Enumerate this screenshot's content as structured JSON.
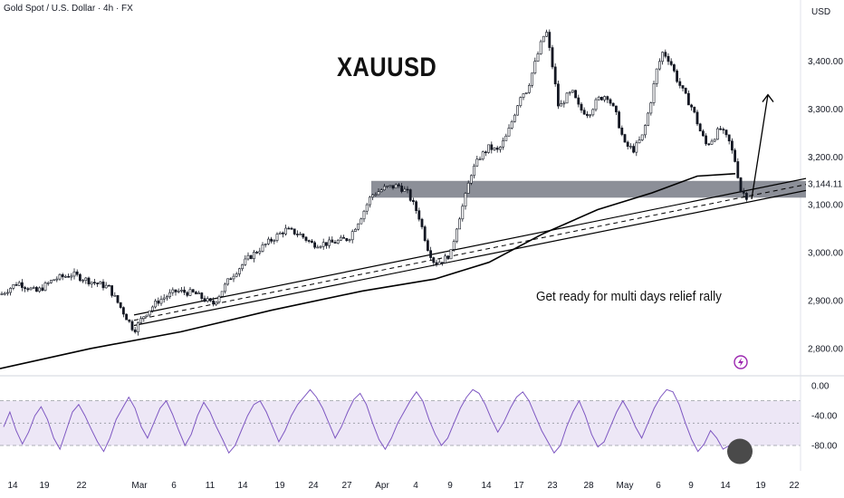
{
  "header": {
    "symbol_label": "Gold Spot / U.S. Dollar · 4h · FX",
    "currency": "USD"
  },
  "annotations": {
    "title": "XAUUSD",
    "note": "Get ready for multi days relief rally",
    "price_label": "3,144.11"
  },
  "colors": {
    "candle": "#131722",
    "zone": "#787b86",
    "rsi_line": "#7e57c2",
    "rsi_band": "#ede7f6",
    "rsi_marker": "#4a4a4a",
    "bolt": "#9c27b0"
  },
  "chart_data": [
    {
      "type": "candlestick",
      "title": "Gold Spot / U.S. Dollar · 4h · FX",
      "y_axis": {
        "ticks": [
          2800,
          2900,
          3000,
          3100,
          3200,
          3300,
          3400
        ],
        "tick_labels": [
          "2,800.00",
          "2,900.00",
          "3,000.00",
          "3,100.00",
          "3,200.00",
          "3,300.00",
          "3,400.00"
        ],
        "ylim": [
          2745,
          3505
        ],
        "unit": "USD"
      },
      "x_axis": {
        "tick_labels": [
          "14",
          "19",
          "22",
          "Mar",
          "6",
          "11",
          "14",
          "19",
          "24",
          "27",
          "Apr",
          "4",
          "9",
          "14",
          "17",
          "23",
          "28",
          "May",
          "6",
          "9",
          "14",
          "19",
          "22"
        ]
      },
      "price_path": [
        [
          0,
          2912
        ],
        [
          20,
          2938
        ],
        [
          40,
          2918
        ],
        [
          60,
          2945
        ],
        [
          80,
          2955
        ],
        [
          100,
          2940
        ],
        [
          120,
          2928
        ],
        [
          135,
          2880
        ],
        [
          148,
          2838
        ],
        [
          160,
          2872
        ],
        [
          175,
          2900
        ],
        [
          195,
          2920
        ],
        [
          215,
          2915
        ],
        [
          235,
          2892
        ],
        [
          255,
          2950
        ],
        [
          275,
          2990
        ],
        [
          295,
          3020
        ],
        [
          315,
          3048
        ],
        [
          330,
          3040
        ],
        [
          345,
          3018
        ],
        [
          365,
          3020
        ],
        [
          385,
          3030
        ],
        [
          400,
          3080
        ],
        [
          410,
          3120
        ],
        [
          425,
          3135
        ],
        [
          440,
          3140
        ],
        [
          450,
          3125
        ],
        [
          462,
          3080
        ],
        [
          472,
          3012
        ],
        [
          480,
          2978
        ],
        [
          490,
          2985
        ],
        [
          498,
          3000
        ],
        [
          505,
          3060
        ],
        [
          513,
          3110
        ],
        [
          520,
          3165
        ],
        [
          530,
          3200
        ],
        [
          540,
          3220
        ],
        [
          550,
          3212
        ],
        [
          560,
          3245
        ],
        [
          568,
          3290
        ],
        [
          575,
          3330
        ],
        [
          582,
          3340
        ],
        [
          590,
          3390
        ],
        [
          598,
          3440
        ],
        [
          603,
          3465
        ],
        [
          610,
          3390
        ],
        [
          617,
          3300
        ],
        [
          625,
          3325
        ],
        [
          632,
          3335
        ],
        [
          640,
          3300
        ],
        [
          650,
          3290
        ],
        [
          660,
          3320
        ],
        [
          670,
          3330
        ],
        [
          680,
          3290
        ],
        [
          690,
          3225
        ],
        [
          700,
          3215
        ],
        [
          710,
          3245
        ],
        [
          718,
          3310
        ],
        [
          725,
          3380
        ],
        [
          732,
          3420
        ],
        [
          740,
          3400
        ],
        [
          748,
          3360
        ],
        [
          756,
          3330
        ],
        [
          765,
          3300
        ],
        [
          773,
          3255
        ],
        [
          780,
          3225
        ],
        [
          788,
          3240
        ],
        [
          795,
          3260
        ],
        [
          805,
          3232
        ],
        [
          812,
          3190
        ],
        [
          818,
          3130
        ],
        [
          826,
          3115
        ]
      ],
      "moving_average_curve": [
        [
          0,
          2758
        ],
        [
          100,
          2800
        ],
        [
          200,
          2835
        ],
        [
          300,
          2880
        ],
        [
          400,
          2920
        ],
        [
          480,
          2945
        ],
        [
          540,
          2980
        ],
        [
          600,
          3040
        ],
        [
          660,
          3090
        ],
        [
          720,
          3125
        ],
        [
          770,
          3160
        ],
        [
          812,
          3165
        ]
      ],
      "support_channel": {
        "lower_start": [
          148,
          2848
        ],
        "lower_end": [
          890,
          3130
        ],
        "upper_end": [
          890,
          3155
        ]
      },
      "resistance_zone": {
        "x_range": [
          410,
          890
        ],
        "price_range": [
          3115,
          3150
        ],
        "price_label": "3,144.11"
      },
      "projection": {
        "from": [
          830,
          3112
        ],
        "to": [
          848,
          3330
        ]
      }
    },
    {
      "type": "line",
      "name": "RSI",
      "y_axis": {
        "ticks": [
          0,
          -40,
          -80
        ],
        "tick_labels": [
          "0.00",
          "-40.00",
          "-80.00"
        ],
        "ylim": [
          -108,
          10
        ]
      },
      "levels": [
        -20,
        -50,
        -80
      ],
      "values": [
        -55,
        -35,
        -60,
        -78,
        -62,
        -40,
        -28,
        -45,
        -70,
        -85,
        -60,
        -35,
        -25,
        -40,
        -58,
        -75,
        -88,
        -70,
        -45,
        -30,
        -15,
        -30,
        -55,
        -70,
        -50,
        -30,
        -20,
        -38,
        -60,
        -80,
        -65,
        -40,
        -22,
        -35,
        -55,
        -72,
        -90,
        -80,
        -60,
        -40,
        -25,
        -20,
        -35,
        -55,
        -75,
        -60,
        -40,
        -25,
        -15,
        -5,
        -15,
        -30,
        -50,
        -70,
        -55,
        -35,
        -18,
        -10,
        -25,
        -50,
        -72,
        -85,
        -70,
        -50,
        -35,
        -20,
        -8,
        -20,
        -45,
        -65,
        -80,
        -70,
        -50,
        -30,
        -15,
        -5,
        -10,
        -25,
        -45,
        -62,
        -48,
        -30,
        -15,
        -8,
        -20,
        -40,
        -60,
        -75,
        -90,
        -80,
        -55,
        -35,
        -20,
        -40,
        -65,
        -82,
        -75,
        -55,
        -35,
        -20,
        -35,
        -55,
        -70,
        -50,
        -30,
        -15,
        -5,
        -8,
        -25,
        -50,
        -72,
        -88,
        -78,
        -60,
        -70,
        -85,
        -80,
        -75,
        -82,
        -90
      ]
    }
  ]
}
